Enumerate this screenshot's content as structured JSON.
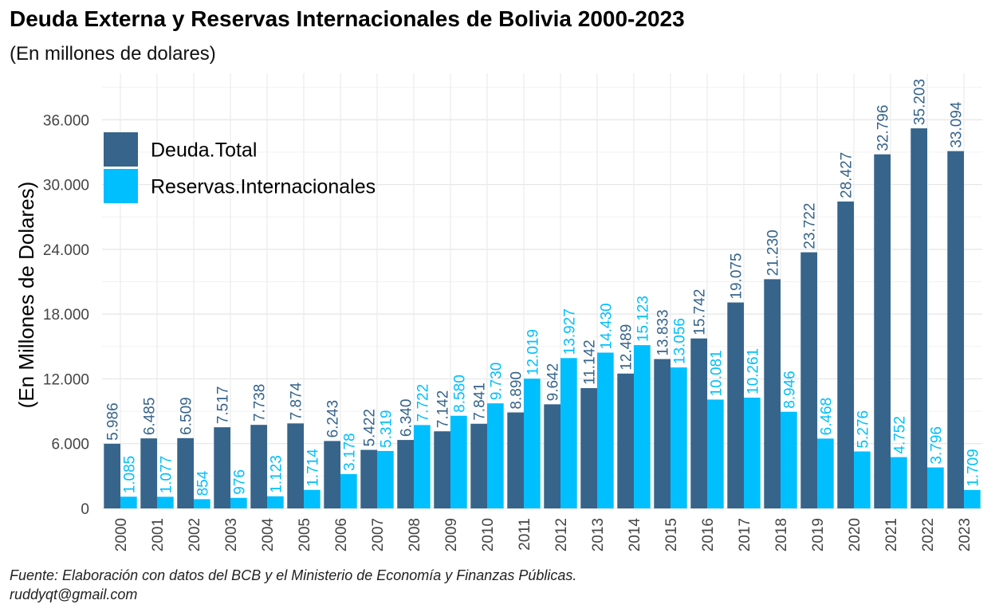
{
  "chart_data": {
    "type": "bar",
    "title": "Deuda Externa y Reservas Internacionales de Bolivia 2000-2023",
    "subtitle": "(En millones de dolares)",
    "xlabel": "",
    "ylabel": "(En Millones de Dolares)",
    "caption": [
      "Fuente: Elaboración con datos del BCB y el Ministerio de Economía y Finanzas Públicas.",
      "ruddyqt@gmail.com"
    ],
    "categories": [
      "2000",
      "2001",
      "2002",
      "2003",
      "2004",
      "2005",
      "2006",
      "2007",
      "2008",
      "2009",
      "2010",
      "2011",
      "2012",
      "2013",
      "2014",
      "2015",
      "2016",
      "2017",
      "2018",
      "2019",
      "2020",
      "2021",
      "2022",
      "2023"
    ],
    "series": [
      {
        "name": "Deuda.Total",
        "color": "#36648B",
        "values": [
          5986,
          6485,
          6509,
          7517,
          7738,
          7874,
          6243,
          5422,
          6340,
          7142,
          7841,
          8890,
          9642,
          11142,
          12489,
          13833,
          15742,
          19075,
          21230,
          23722,
          28427,
          32796,
          35203,
          33094
        ],
        "labels": [
          "5.986",
          "6.485",
          "6.509",
          "7.517",
          "7.738",
          "7.874",
          "6.243",
          "5.422",
          "6.340",
          "7.142",
          "7.841",
          "8.890",
          "9.642",
          "11.142",
          "12.489",
          "13.833",
          "15.742",
          "19.075",
          "21.230",
          "23.722",
          "28.427",
          "32.796",
          "35.203",
          "33.094"
        ]
      },
      {
        "name": "Reservas.Internacionales",
        "color": "#00BFFF",
        "values": [
          1085,
          1077,
          854,
          976,
          1123,
          1714,
          3178,
          5319,
          7722,
          8580,
          9730,
          12019,
          13927,
          14430,
          15123,
          13056,
          10081,
          10261,
          8946,
          6468,
          5276,
          4752,
          3796,
          1709
        ],
        "labels": [
          "1.085",
          "1.077",
          "854",
          "976",
          "1.123",
          "1.714",
          "3.178",
          "5.319",
          "7.722",
          "8.580",
          "9.730",
          "12.019",
          "13.927",
          "14.430",
          "15.123",
          "13.056",
          "10.081",
          "10.261",
          "8.946",
          "6.468",
          "5.276",
          "4.752",
          "3.796",
          "1.709"
        ]
      }
    ],
    "ylim": [
      0,
      36000
    ],
    "yticks": [
      0,
      6000,
      12000,
      18000,
      24000,
      30000,
      36000
    ],
    "ytick_labels": [
      "0",
      "6.000",
      "12.000",
      "18.000",
      "24.000",
      "30.000",
      "36.000"
    ],
    "grid": true,
    "legend_position": "top-left",
    "label_rotation": -90
  }
}
